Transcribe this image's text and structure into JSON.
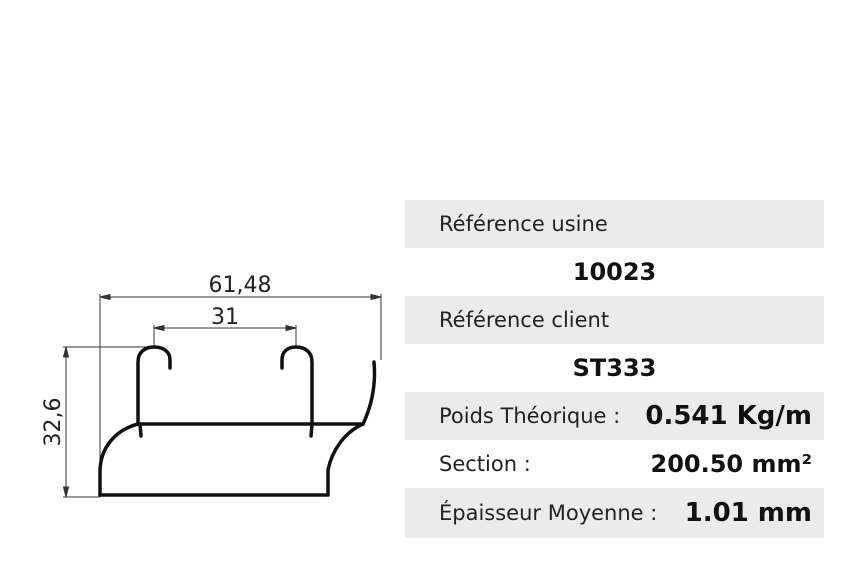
{
  "drawing": {
    "dim_width": "61,48",
    "dim_inner": "31",
    "dim_height": "32,6"
  },
  "specs": {
    "ref_usine_label": "Référence usine",
    "ref_usine_value": "10023",
    "ref_client_label": "Référence client",
    "ref_client_value": "ST333",
    "poids_label": "Poids Théorique :",
    "poids_value": "0.541 Kg/m",
    "section_label": "Section :",
    "section_value": "200.50 mm²",
    "epaisseur_label": "Épaisseur Moyenne :",
    "epaisseur_value": "1.01 mm"
  },
  "colors": {
    "row_background": "#ebebeb"
  }
}
